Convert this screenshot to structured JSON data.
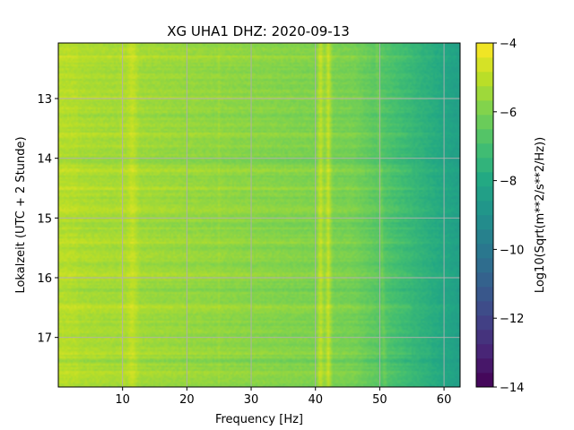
{
  "chart_data": {
    "type": "heatmap",
    "title": "XG UHA1  DHZ: 2020-09-13",
    "xlabel": "Frequency [Hz]",
    "ylabel": "Lokalzeit (UTC + 2 Stunde)",
    "colorbar_label": "Log10(Sqrt(m**2/s**2/Hz))",
    "xlim": [
      0,
      62.5
    ],
    "ylim": [
      17.83,
      12.07
    ],
    "y_axis_inverted": true,
    "x_ticks": [
      10,
      20,
      30,
      40,
      50,
      60
    ],
    "y_ticks": [
      13,
      14,
      15,
      16,
      17
    ],
    "colorbar_range": [
      -14,
      -4
    ],
    "colorbar_ticks": [
      -14,
      -12,
      -10,
      -8,
      -6,
      -4
    ],
    "colormap": "viridis",
    "grid": true,
    "features": {
      "spectral_lines_hz": [
        {
          "freq": 10.0,
          "width": 0.5,
          "strength": 0.3
        },
        {
          "freq": 11.5,
          "width": 1.2,
          "strength": 0.55
        },
        {
          "freq": 25.0,
          "width": 0.3,
          "strength": 0.2
        },
        {
          "freq": 40.8,
          "width": 0.7,
          "strength": 1.1
        },
        {
          "freq": 42.0,
          "width": 0.7,
          "strength": 1.1
        },
        {
          "freq": 50.2,
          "width": 0.4,
          "strength": 0.45
        }
      ],
      "base_level_low_hz": -5.2,
      "base_level_high_hz": -8.2,
      "rolloff_start_hz": 46,
      "bright_time_bands_h": [
        12.3,
        13.0,
        13.6,
        14.2,
        14.5,
        14.85,
        15.4,
        15.95,
        16.5,
        16.9,
        17.25,
        17.6
      ],
      "dim_time_bands_h": [
        13.3,
        14.05,
        15.1,
        16.2,
        17.4
      ]
    }
  }
}
